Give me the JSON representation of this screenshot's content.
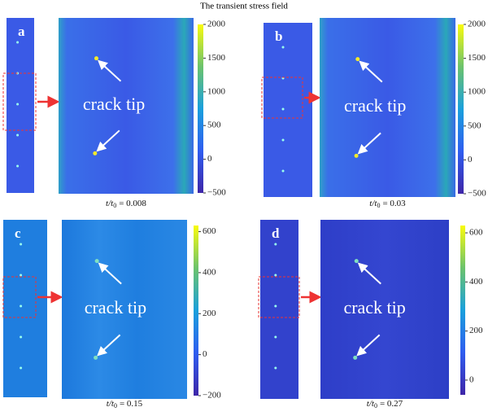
{
  "title": "The transient stress field",
  "panels": [
    {
      "label": "a",
      "annotation": "crack tip",
      "caption": {
        "lhs": "t/t",
        "sub": "0",
        "rhs": "= 0.008"
      },
      "colorbar": {
        "range": [
          -500,
          2000
        ],
        "ticks": [
          {
            "value": -500,
            "label": "−500"
          },
          0,
          500,
          1000,
          1500,
          2000
        ]
      }
    },
    {
      "label": "b",
      "annotation": "crack tip",
      "caption": {
        "lhs": "t/t",
        "sub": "0",
        "rhs": "= 0.03"
      },
      "colorbar": {
        "range": [
          -500,
          2000
        ],
        "ticks": [
          {
            "value": -500,
            "label": "−500"
          },
          0,
          500,
          1000,
          1500,
          2000
        ]
      }
    },
    {
      "label": "c",
      "annotation": "crack tip",
      "caption": {
        "lhs": "t/t",
        "sub": "0",
        "rhs": "= 0.15"
      },
      "colorbar": {
        "range": [
          -200,
          630
        ],
        "ticks": [
          {
            "value": -200,
            "label": "−200"
          },
          0,
          200,
          400,
          600
        ]
      }
    },
    {
      "label": "d",
      "annotation": "crack tip",
      "caption": {
        "lhs": "t/t",
        "sub": "0",
        "rhs": "= 0.27"
      },
      "colorbar": {
        "range": [
          -60,
          630
        ],
        "ticks": [
          0,
          200,
          400,
          600
        ]
      }
    }
  ]
}
